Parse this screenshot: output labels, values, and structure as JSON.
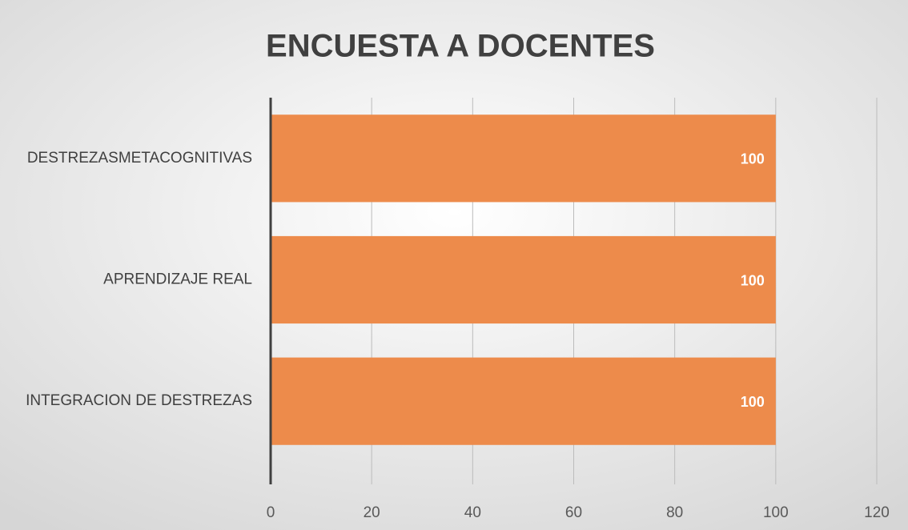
{
  "chart_data": {
    "type": "bar",
    "orientation": "horizontal",
    "title": "ENCUESTA A DOCENTES",
    "categories": [
      "DESTREZASMETACOGNITIVAS",
      "APRENDIZAJE REAL",
      "INTEGRACION DE DESTREZAS"
    ],
    "values": [
      100,
      100,
      100
    ],
    "color": "#ed8b4b",
    "xlim": [
      0,
      120
    ],
    "xticks": [
      0,
      20,
      40,
      60,
      80,
      100,
      120
    ],
    "grid": true
  }
}
